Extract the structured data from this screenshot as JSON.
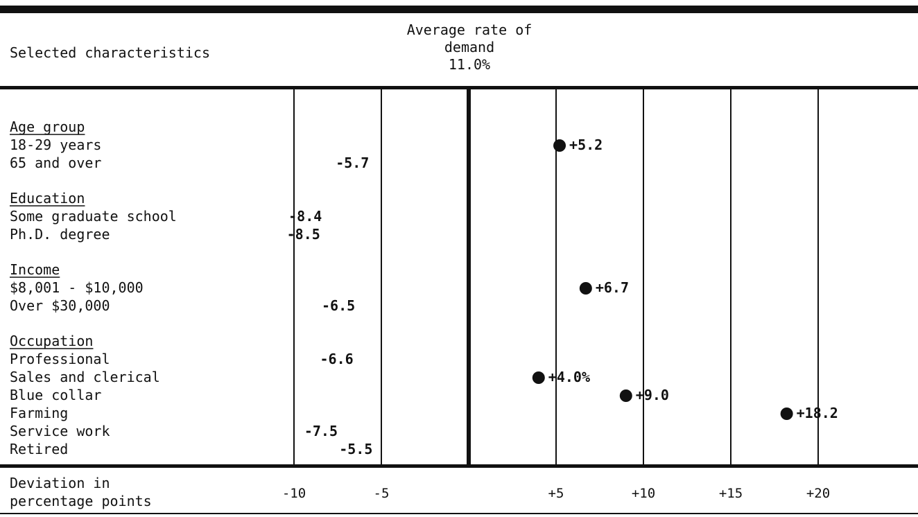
{
  "header": {
    "left_label": "Selected characteristics",
    "center_label_lines": [
      "Average rate of",
      "demand",
      "11.0%"
    ]
  },
  "footer": {
    "axis_label_lines": [
      "Deviation in",
      "percentage points"
    ]
  },
  "chart_data": {
    "type": "scatter",
    "title": "",
    "xlabel": "Deviation in percentage points",
    "x_ticks": [
      {
        "value": -10,
        "label": "-10"
      },
      {
        "value": -5,
        "label": "-5"
      },
      {
        "value": 5,
        "label": "+5"
      },
      {
        "value": 10,
        "label": "+10"
      },
      {
        "value": 15,
        "label": "+15"
      },
      {
        "value": 20,
        "label": "+20"
      }
    ],
    "xlim": [
      -10,
      20
    ],
    "baseline": 0,
    "baseline_label": "Average rate of demand 11.0%",
    "groups": [
      {
        "name": "Age group",
        "items": [
          {
            "label": "18-29 years",
            "value": 5.2,
            "value_label": "+5.2"
          },
          {
            "label": "65 and over",
            "value": -5.7,
            "value_label": "-5.7"
          }
        ]
      },
      {
        "name": "Education",
        "items": [
          {
            "label": "Some graduate school",
            "value": -8.4,
            "value_label": "-8.4"
          },
          {
            "label": "Ph.D. degree",
            "value": -8.5,
            "value_label": "-8.5"
          }
        ]
      },
      {
        "name": "Income",
        "items": [
          {
            "label": "$8,001 - $10,000",
            "value": 6.7,
            "value_label": "+6.7"
          },
          {
            "label": "Over $30,000",
            "value": -6.5,
            "value_label": "-6.5"
          }
        ]
      },
      {
        "name": "Occupation",
        "items": [
          {
            "label": "Professional",
            "value": -6.6,
            "value_label": "-6.6"
          },
          {
            "label": "Sales and clerical",
            "value": 4.0,
            "value_label": "+4.0%"
          },
          {
            "label": "Blue collar",
            "value": 9.0,
            "value_label": "+9.0"
          },
          {
            "label": "Farming",
            "value": 18.2,
            "value_label": "+18.2"
          },
          {
            "label": "Service work",
            "value": -7.5,
            "value_label": "-7.5"
          },
          {
            "label": "Retired",
            "value": -5.5,
            "value_label": "-5.5"
          }
        ]
      }
    ],
    "marker_color": "#111111",
    "grid": true
  }
}
